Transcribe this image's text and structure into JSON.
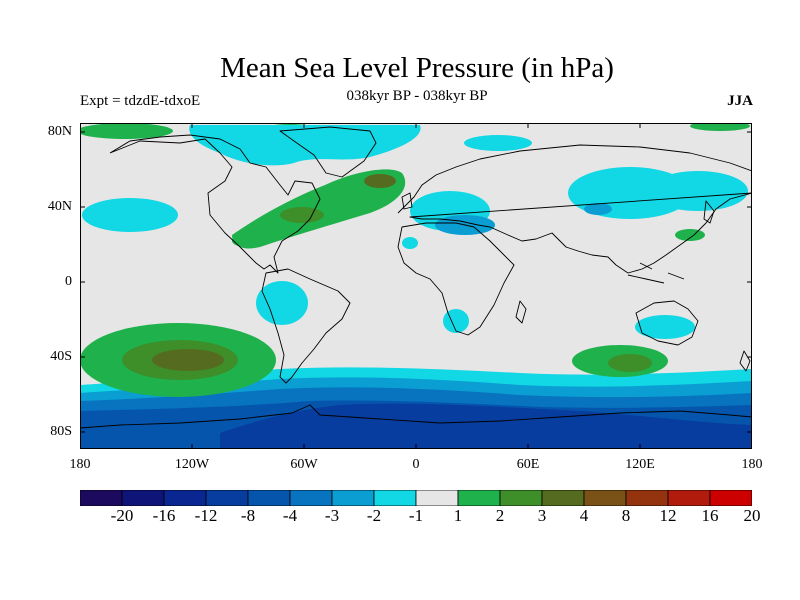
{
  "title": "Mean Sea Level Pressure (in hPa)",
  "subtitle_left": "Expt = tdzdE-tdxoE",
  "subtitle_center": "038kyr BP - 038kyr BP",
  "subtitle_right": "JJA",
  "lat_labels": [
    "80N",
    "40N",
    "0",
    "40S",
    "80S"
  ],
  "lon_labels": [
    "180",
    "120W",
    "60W",
    "0",
    "60E",
    "120E",
    "180"
  ],
  "legend": {
    "levels": [
      "-20",
      "-16",
      "-12",
      "-8",
      "-4",
      "-3",
      "-2",
      "-1",
      "1",
      "2",
      "3",
      "4",
      "8",
      "12",
      "16",
      "20"
    ],
    "colors": [
      "#1b0a5e",
      "#0f1479",
      "#0a2690",
      "#073d9f",
      "#0555ad",
      "#0873be",
      "#0a9ed2",
      "#12d7e4",
      "#e6e6e6",
      "#1fb24c",
      "#3e8f2a",
      "#556b1f",
      "#7a5217",
      "#93340f",
      "#b01b0b",
      "#cc0000"
    ]
  },
  "colors": {
    "background": "#e6e6e6",
    "coastline": "#000000"
  }
}
